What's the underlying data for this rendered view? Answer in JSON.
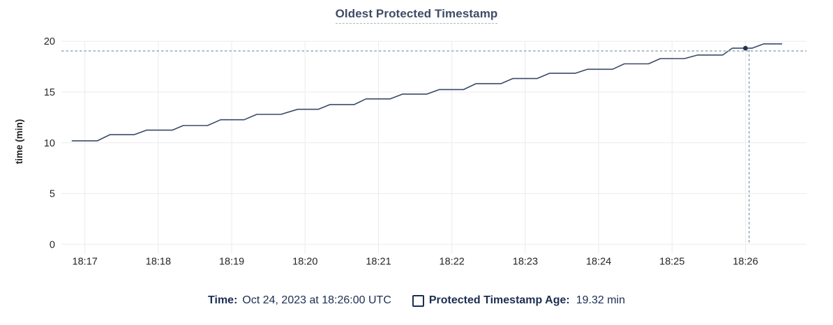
{
  "header": {
    "title": "Oldest Protected Timestamp"
  },
  "footer": {
    "time_label": "Time:",
    "time_value": "Oct 24, 2023 at 18:26:00 UTC",
    "series_label": "Protected Timestamp Age:",
    "series_value": "19.32 min",
    "legend_checkbox_state": "unchecked"
  },
  "colors": {
    "background": "#ffffff",
    "title": "#3f4c66",
    "title_underline": "#a9b5c2",
    "grid": "#ebebeb",
    "tick_text": "#262626",
    "axis_label_text": "#1f1f1f",
    "line": "#3a4a68",
    "dot": "#25324c",
    "crosshair": "#8aa2b2",
    "legend_text": "#1c2e52"
  },
  "chart_data": {
    "type": "line",
    "title": "Oldest Protected Timestamp",
    "xlabel": "",
    "ylabel": "time (min)",
    "ylim": [
      0,
      20
    ],
    "grid": true,
    "legend_position": "bottom-center",
    "x_encoding_note": "x values are minutes after 18:00 UTC on Oct 24, 2023",
    "xlim": [
      16.68,
      26.83
    ],
    "y_ticks": [
      {
        "v": 0,
        "label": "0"
      },
      {
        "v": 5,
        "label": "5"
      },
      {
        "v": 10,
        "label": "10"
      },
      {
        "v": 15,
        "label": "15"
      },
      {
        "v": 20,
        "label": "20"
      }
    ],
    "x_ticks": [
      {
        "t": 17,
        "label": "18:17"
      },
      {
        "t": 18,
        "label": "18:18"
      },
      {
        "t": 19,
        "label": "18:19"
      },
      {
        "t": 20,
        "label": "18:20"
      },
      {
        "t": 21,
        "label": "18:21"
      },
      {
        "t": 22,
        "label": "18:22"
      },
      {
        "t": 23,
        "label": "18:23"
      },
      {
        "t": 24,
        "label": "18:24"
      },
      {
        "t": 25,
        "label": "18:25"
      },
      {
        "t": 26,
        "label": "18:26"
      }
    ],
    "series": [
      {
        "name": "Protected Timestamp Age",
        "unit": "min",
        "points": [
          [
            16.82,
            10.2
          ],
          [
            17.17,
            10.2
          ],
          [
            17.34,
            10.8
          ],
          [
            17.67,
            10.8
          ],
          [
            17.84,
            11.25
          ],
          [
            18.19,
            11.25
          ],
          [
            18.34,
            11.7
          ],
          [
            18.67,
            11.7
          ],
          [
            18.85,
            12.27
          ],
          [
            19.17,
            12.27
          ],
          [
            19.34,
            12.8
          ],
          [
            19.67,
            12.8
          ],
          [
            19.9,
            13.3
          ],
          [
            20.18,
            13.3
          ],
          [
            20.34,
            13.77
          ],
          [
            20.67,
            13.77
          ],
          [
            20.83,
            14.33
          ],
          [
            21.16,
            14.33
          ],
          [
            21.33,
            14.8
          ],
          [
            21.66,
            14.8
          ],
          [
            21.83,
            15.25
          ],
          [
            22.16,
            15.25
          ],
          [
            22.33,
            15.83
          ],
          [
            22.67,
            15.83
          ],
          [
            22.83,
            16.33
          ],
          [
            23.16,
            16.33
          ],
          [
            23.33,
            16.85
          ],
          [
            23.68,
            16.85
          ],
          [
            23.85,
            17.25
          ],
          [
            24.19,
            17.25
          ],
          [
            24.35,
            17.78
          ],
          [
            24.68,
            17.78
          ],
          [
            24.84,
            18.3
          ],
          [
            25.17,
            18.3
          ],
          [
            25.35,
            18.65
          ],
          [
            25.69,
            18.65
          ],
          [
            25.82,
            19.32
          ],
          [
            26.09,
            19.32
          ],
          [
            26.25,
            19.75
          ],
          [
            26.5,
            19.75
          ]
        ]
      }
    ],
    "hover": {
      "time": "Oct 24, 2023 at 18:26:00 UTC",
      "value_min": 19.32,
      "point": [
        26.0,
        19.32
      ],
      "crosshair_t": 26.05,
      "crosshair_v": 19.05
    }
  }
}
